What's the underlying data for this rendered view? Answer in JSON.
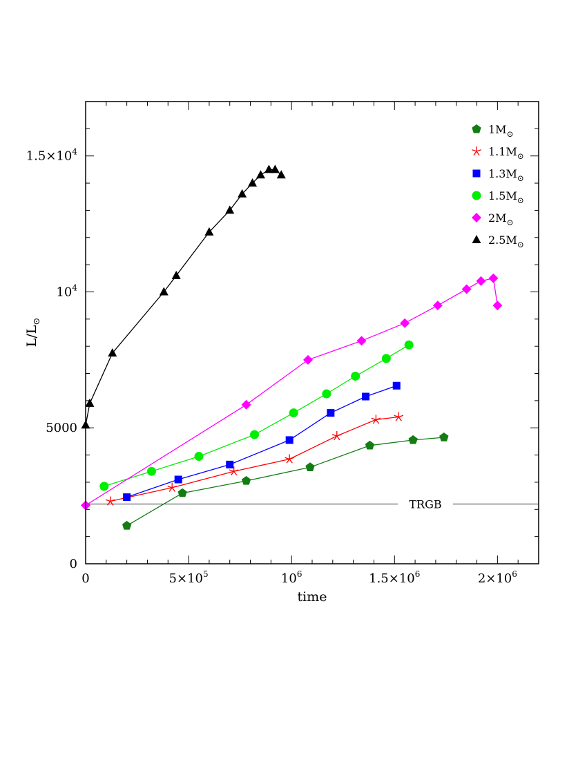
{
  "chart_data": {
    "type": "line",
    "title": "",
    "xlabel": "time",
    "ylabel": "L/L",
    "ylabel_sub": "⊙",
    "xlim": [
      0,
      2200000
    ],
    "ylim": [
      0,
      17000
    ],
    "grid": false,
    "legend_position": "top-right",
    "x_ticks": [
      {
        "value": 0,
        "label": "0",
        "sup": ""
      },
      {
        "value": 500000,
        "label": "5×10",
        "sup": "5"
      },
      {
        "value": 1000000,
        "label": "10",
        "sup": "6"
      },
      {
        "value": 1500000,
        "label": "1.5×10",
        "sup": "6"
      },
      {
        "value": 2000000,
        "label": "2×10",
        "sup": "6"
      }
    ],
    "y_ticks": [
      {
        "value": 0,
        "label": "0",
        "sup": ""
      },
      {
        "value": 5000,
        "label": "5000",
        "sup": ""
      },
      {
        "value": 10000,
        "label": "10",
        "sup": "4"
      },
      {
        "value": 15000,
        "label": "1.5×10",
        "sup": "4"
      }
    ],
    "annotations": [
      {
        "text": "TRGB",
        "x": 1650000,
        "y": 2200
      }
    ],
    "series": [
      {
        "name": "1M",
        "name_sub": "⊙",
        "marker": "pentagon",
        "color": "#137d13",
        "points": [
          [
            200000,
            1400
          ],
          [
            470000,
            2600
          ],
          [
            780000,
            3050
          ],
          [
            1090000,
            3550
          ],
          [
            1380000,
            4350
          ],
          [
            1590000,
            4550
          ],
          [
            1740000,
            4650
          ]
        ]
      },
      {
        "name": "1.1M",
        "name_sub": "⊙",
        "marker": "star",
        "color": "#ff0000",
        "points": [
          [
            120000,
            2300
          ],
          [
            420000,
            2800
          ],
          [
            720000,
            3400
          ],
          [
            990000,
            3850
          ],
          [
            1220000,
            4700
          ],
          [
            1410000,
            5300
          ],
          [
            1520000,
            5400
          ]
        ]
      },
      {
        "name": "1.3M",
        "name_sub": "⊙",
        "marker": "square",
        "color": "#0000ff",
        "points": [
          [
            200000,
            2450
          ],
          [
            450000,
            3100
          ],
          [
            700000,
            3650
          ],
          [
            990000,
            4550
          ],
          [
            1190000,
            5550
          ],
          [
            1360000,
            6150
          ],
          [
            1510000,
            6550
          ]
        ]
      },
      {
        "name": "1.5M",
        "name_sub": "⊙",
        "marker": "circle",
        "color": "#00ee00",
        "points": [
          [
            90000,
            2850
          ],
          [
            320000,
            3400
          ],
          [
            550000,
            3950
          ],
          [
            820000,
            4750
          ],
          [
            1010000,
            5550
          ],
          [
            1170000,
            6250
          ],
          [
            1310000,
            6900
          ],
          [
            1460000,
            7550
          ],
          [
            1570000,
            8050
          ]
        ]
      },
      {
        "name": "2M",
        "name_sub": "⊙",
        "marker": "diamond",
        "color": "#ff00ff",
        "points": [
          [
            0,
            2150
          ],
          [
            780000,
            5850
          ],
          [
            1080000,
            7500
          ],
          [
            1340000,
            8200
          ],
          [
            1550000,
            8850
          ],
          [
            1710000,
            9500
          ],
          [
            1850000,
            10100
          ],
          [
            1920000,
            10400
          ],
          [
            1980000,
            10500
          ],
          [
            2000000,
            9500
          ]
        ]
      },
      {
        "name": "2.5M",
        "name_sub": "⊙",
        "marker": "triangle",
        "color": "#000000",
        "points": [
          [
            0,
            5100
          ],
          [
            20000,
            5900
          ],
          [
            130000,
            7750
          ],
          [
            380000,
            10000
          ],
          [
            440000,
            10600
          ],
          [
            600000,
            12200
          ],
          [
            700000,
            13000
          ],
          [
            760000,
            13600
          ],
          [
            810000,
            14000
          ],
          [
            850000,
            14300
          ],
          [
            890000,
            14500
          ],
          [
            920000,
            14500
          ],
          [
            950000,
            14300
          ]
        ]
      }
    ]
  }
}
